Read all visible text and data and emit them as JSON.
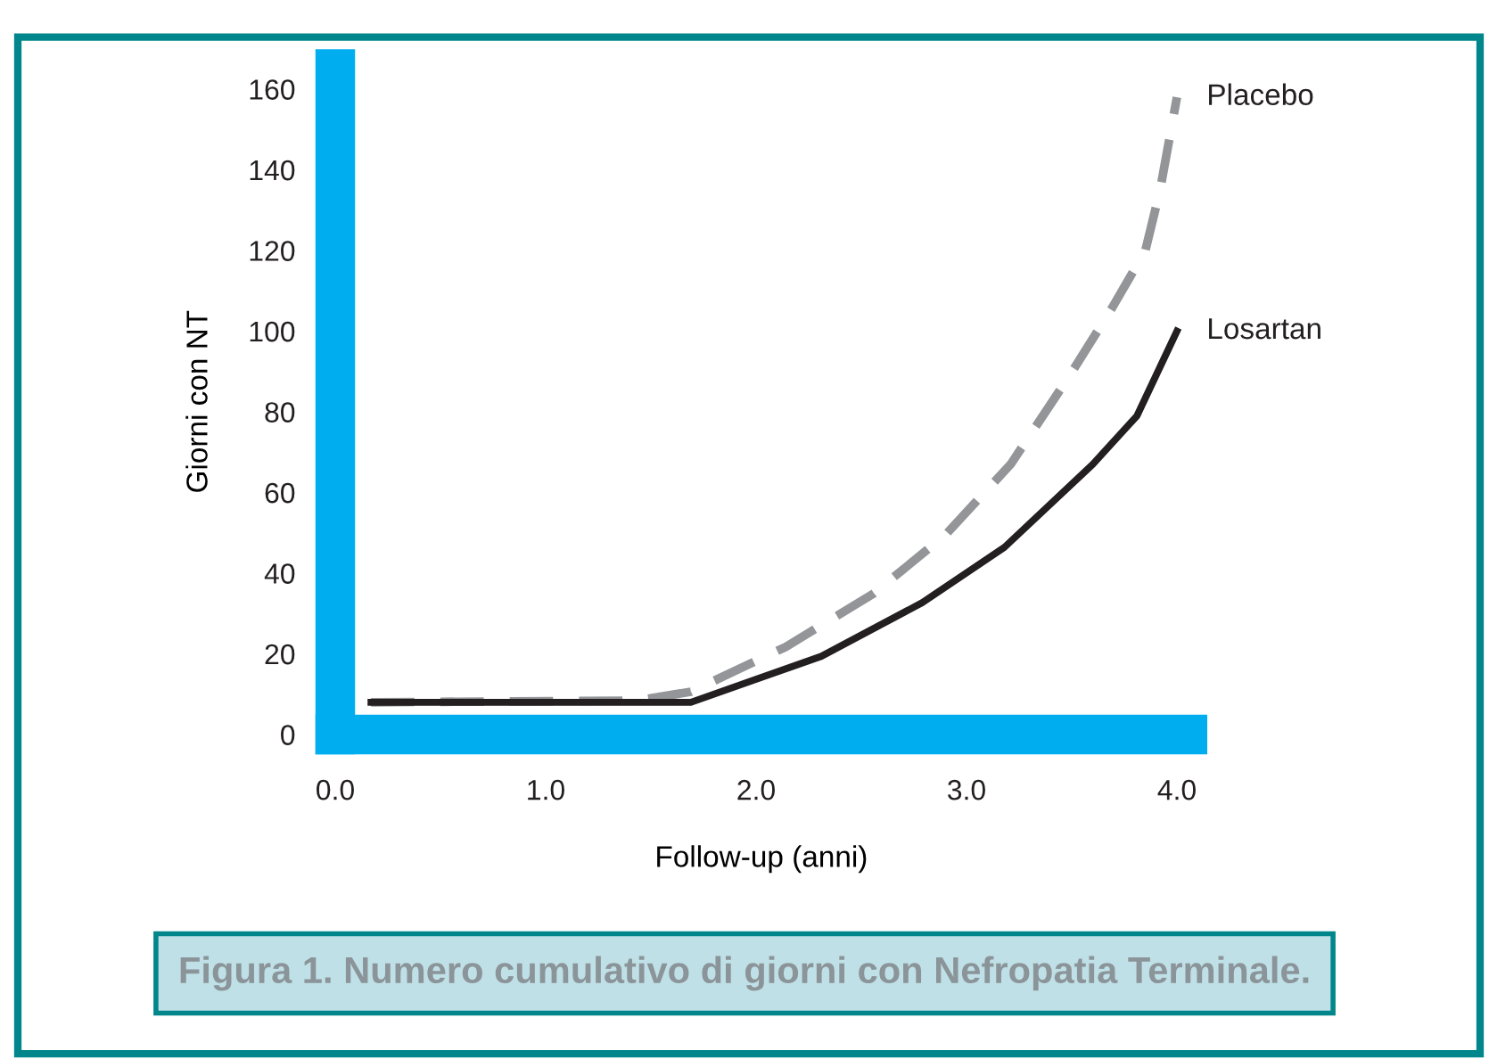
{
  "chart_data": {
    "type": "line",
    "xlabel": "Follow-up (anni)",
    "ylabel": "Giorni con NT",
    "xlim": [
      0,
      4.05
    ],
    "ylim": [
      0,
      165
    ],
    "xticks": [
      {
        "value": 0,
        "label": "0.0"
      },
      {
        "value": 1,
        "label": "1.0"
      },
      {
        "value": 2,
        "label": "2.0"
      },
      {
        "value": 3,
        "label": "3.0"
      },
      {
        "value": 4,
        "label": "4.0"
      }
    ],
    "yticks": [
      0,
      20,
      40,
      60,
      80,
      100,
      120,
      140,
      160
    ],
    "grid": false,
    "legend": false,
    "series": [
      {
        "name": "Placebo",
        "color": "#939598",
        "line_style": "dashed",
        "x": [
          0.17,
          1.43,
          1.69,
          2.14,
          2.56,
          2.9,
          3.21,
          3.49,
          3.69,
          3.85,
          3.92,
          4.0
        ],
        "values": [
          8,
          8.4,
          10.6,
          21.7,
          35,
          49.5,
          67,
          89,
          105.6,
          120,
          135,
          158
        ]
      },
      {
        "name": "Losartan",
        "color": "#231f20",
        "line_style": "solid",
        "x": [
          0.17,
          1.69,
          2.31,
          2.79,
          3.18,
          3.6,
          3.81,
          4.0
        ],
        "values": [
          8,
          8,
          19.4,
          32.7,
          46.4,
          67,
          79,
          100
        ]
      }
    ],
    "annotations": [
      "Figura 1. Numero cumulativo di giorni con Nefropatia Terminale."
    ]
  }
}
